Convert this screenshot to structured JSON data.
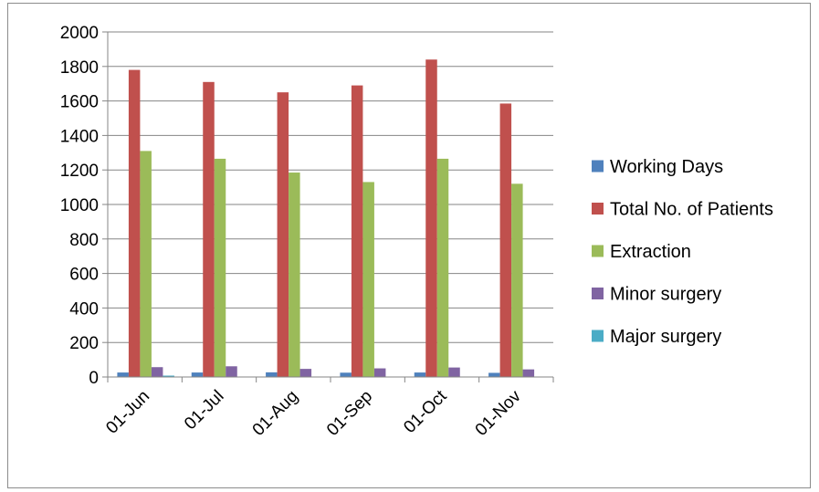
{
  "chart_data": {
    "type": "bar",
    "categories": [
      "01-Jun",
      "01-Jul",
      "01-Aug",
      "01-Sep",
      "01-Oct",
      "01-Nov"
    ],
    "series": [
      {
        "name": "Working Days",
        "color": "#4f81bd",
        "values": [
          26,
          26,
          27,
          25,
          26,
          24
        ]
      },
      {
        "name": "Total No. of Patients",
        "color": "#c0504d",
        "values": [
          1780,
          1710,
          1650,
          1690,
          1840,
          1585
        ]
      },
      {
        "name": "Extraction",
        "color": "#9bbb59",
        "values": [
          1310,
          1265,
          1185,
          1130,
          1265,
          1120
        ]
      },
      {
        "name": "Minor surgery",
        "color": "#8064a2",
        "values": [
          57,
          62,
          47,
          50,
          55,
          44
        ]
      },
      {
        "name": "Major surgery",
        "color": "#4bacc6",
        "values": [
          8,
          0,
          0,
          0,
          0,
          0
        ]
      }
    ],
    "yticks": [
      "0",
      "200",
      "400",
      "600",
      "800",
      "1000",
      "1200",
      "1400",
      "1600",
      "1800",
      "2000"
    ],
    "ylim": [
      0,
      2000
    ],
    "grid": true,
    "legend_position": "right"
  }
}
